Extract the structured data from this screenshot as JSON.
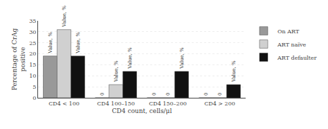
{
  "chart_data": {
    "type": "bar",
    "categories": [
      "CD4 < 100",
      "CD4 100–150",
      "CD4 150–200",
      "CD4 > 200"
    ],
    "series": [
      {
        "name": "On ART",
        "color": "#999999",
        "values": [
          19,
          0,
          0,
          0
        ],
        "value_labels": [
          "Value, %",
          "0",
          "0",
          "0"
        ]
      },
      {
        "name": "ART naïve",
        "color": "#d0d0d0",
        "values": [
          31,
          6,
          0,
          0
        ],
        "value_labels": [
          "Value, %",
          "Value, %",
          "0",
          "0"
        ]
      },
      {
        "name": "ART defaulter",
        "color": "#111111",
        "values": [
          19,
          12,
          12,
          6
        ],
        "value_labels": [
          "Value, %",
          "Value, %",
          "Value, %",
          "Value, %"
        ]
      }
    ],
    "xlabel": "CD4 count, cells/μl",
    "ylabel": "Percentage of CrAg\npositive",
    "ylim": [
      0,
      35
    ],
    "yticks": [
      0,
      5,
      10,
      15,
      20,
      25,
      30,
      35
    ],
    "grid": true,
    "legend": "right",
    "data_labels": true
  }
}
